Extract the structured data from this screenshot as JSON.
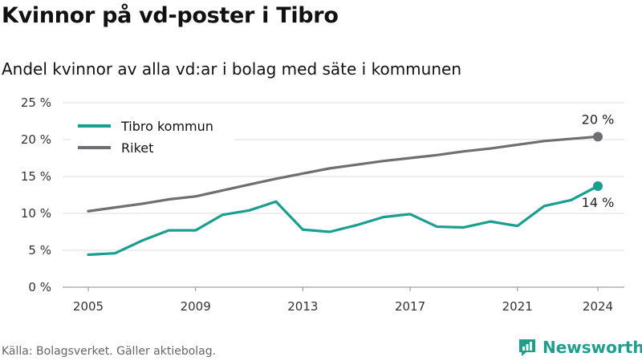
{
  "title": "Kvinnor på vd-poster i Tibro",
  "subtitle": "Andel kvinnor av alla vd:ar i bolag med säte i kommunen",
  "source": "Källa: Bolagsverket. Gäller aktiebolag.",
  "brand": {
    "name": "Newsworthy",
    "icon": "newsworthy-logo-icon",
    "color": "#1f9e8e"
  },
  "chart_data": {
    "type": "line",
    "title": "Kvinnor på vd-poster i Tibro",
    "subtitle": "Andel kvinnor av alla vd:ar i bolag med säte i kommunen",
    "xlabel": "",
    "ylabel": "",
    "x": [
      2005,
      2006,
      2007,
      2008,
      2009,
      2010,
      2011,
      2012,
      2013,
      2014,
      2015,
      2016,
      2017,
      2018,
      2019,
      2020,
      2021,
      2022,
      2023,
      2024
    ],
    "xticks": [
      "2005",
      "2009",
      "2013",
      "2017",
      "2021",
      "2024"
    ],
    "yticks": [
      "0 %",
      "5 %",
      "10 %",
      "15 %",
      "20 %",
      "25 %"
    ],
    "ylim": [
      0,
      25
    ],
    "grid": "horizontal",
    "legend": "top-left",
    "series": [
      {
        "name": "Tibro kommun",
        "color": "#1a9e90",
        "values": [
          4.4,
          4.6,
          6.3,
          7.7,
          7.7,
          9.8,
          10.4,
          11.6,
          7.8,
          7.5,
          8.4,
          9.5,
          9.9,
          8.2,
          8.1,
          8.9,
          8.3,
          11.0,
          11.8,
          13.7
        ],
        "end_label": "14 %"
      },
      {
        "name": "Riket",
        "color": "#6e6e73",
        "values": [
          10.3,
          10.8,
          11.3,
          11.9,
          12.3,
          13.1,
          13.9,
          14.7,
          15.4,
          16.1,
          16.6,
          17.1,
          17.5,
          17.9,
          18.4,
          18.8,
          19.3,
          19.8,
          20.1,
          20.4
        ],
        "end_label": "20 %"
      }
    ]
  }
}
